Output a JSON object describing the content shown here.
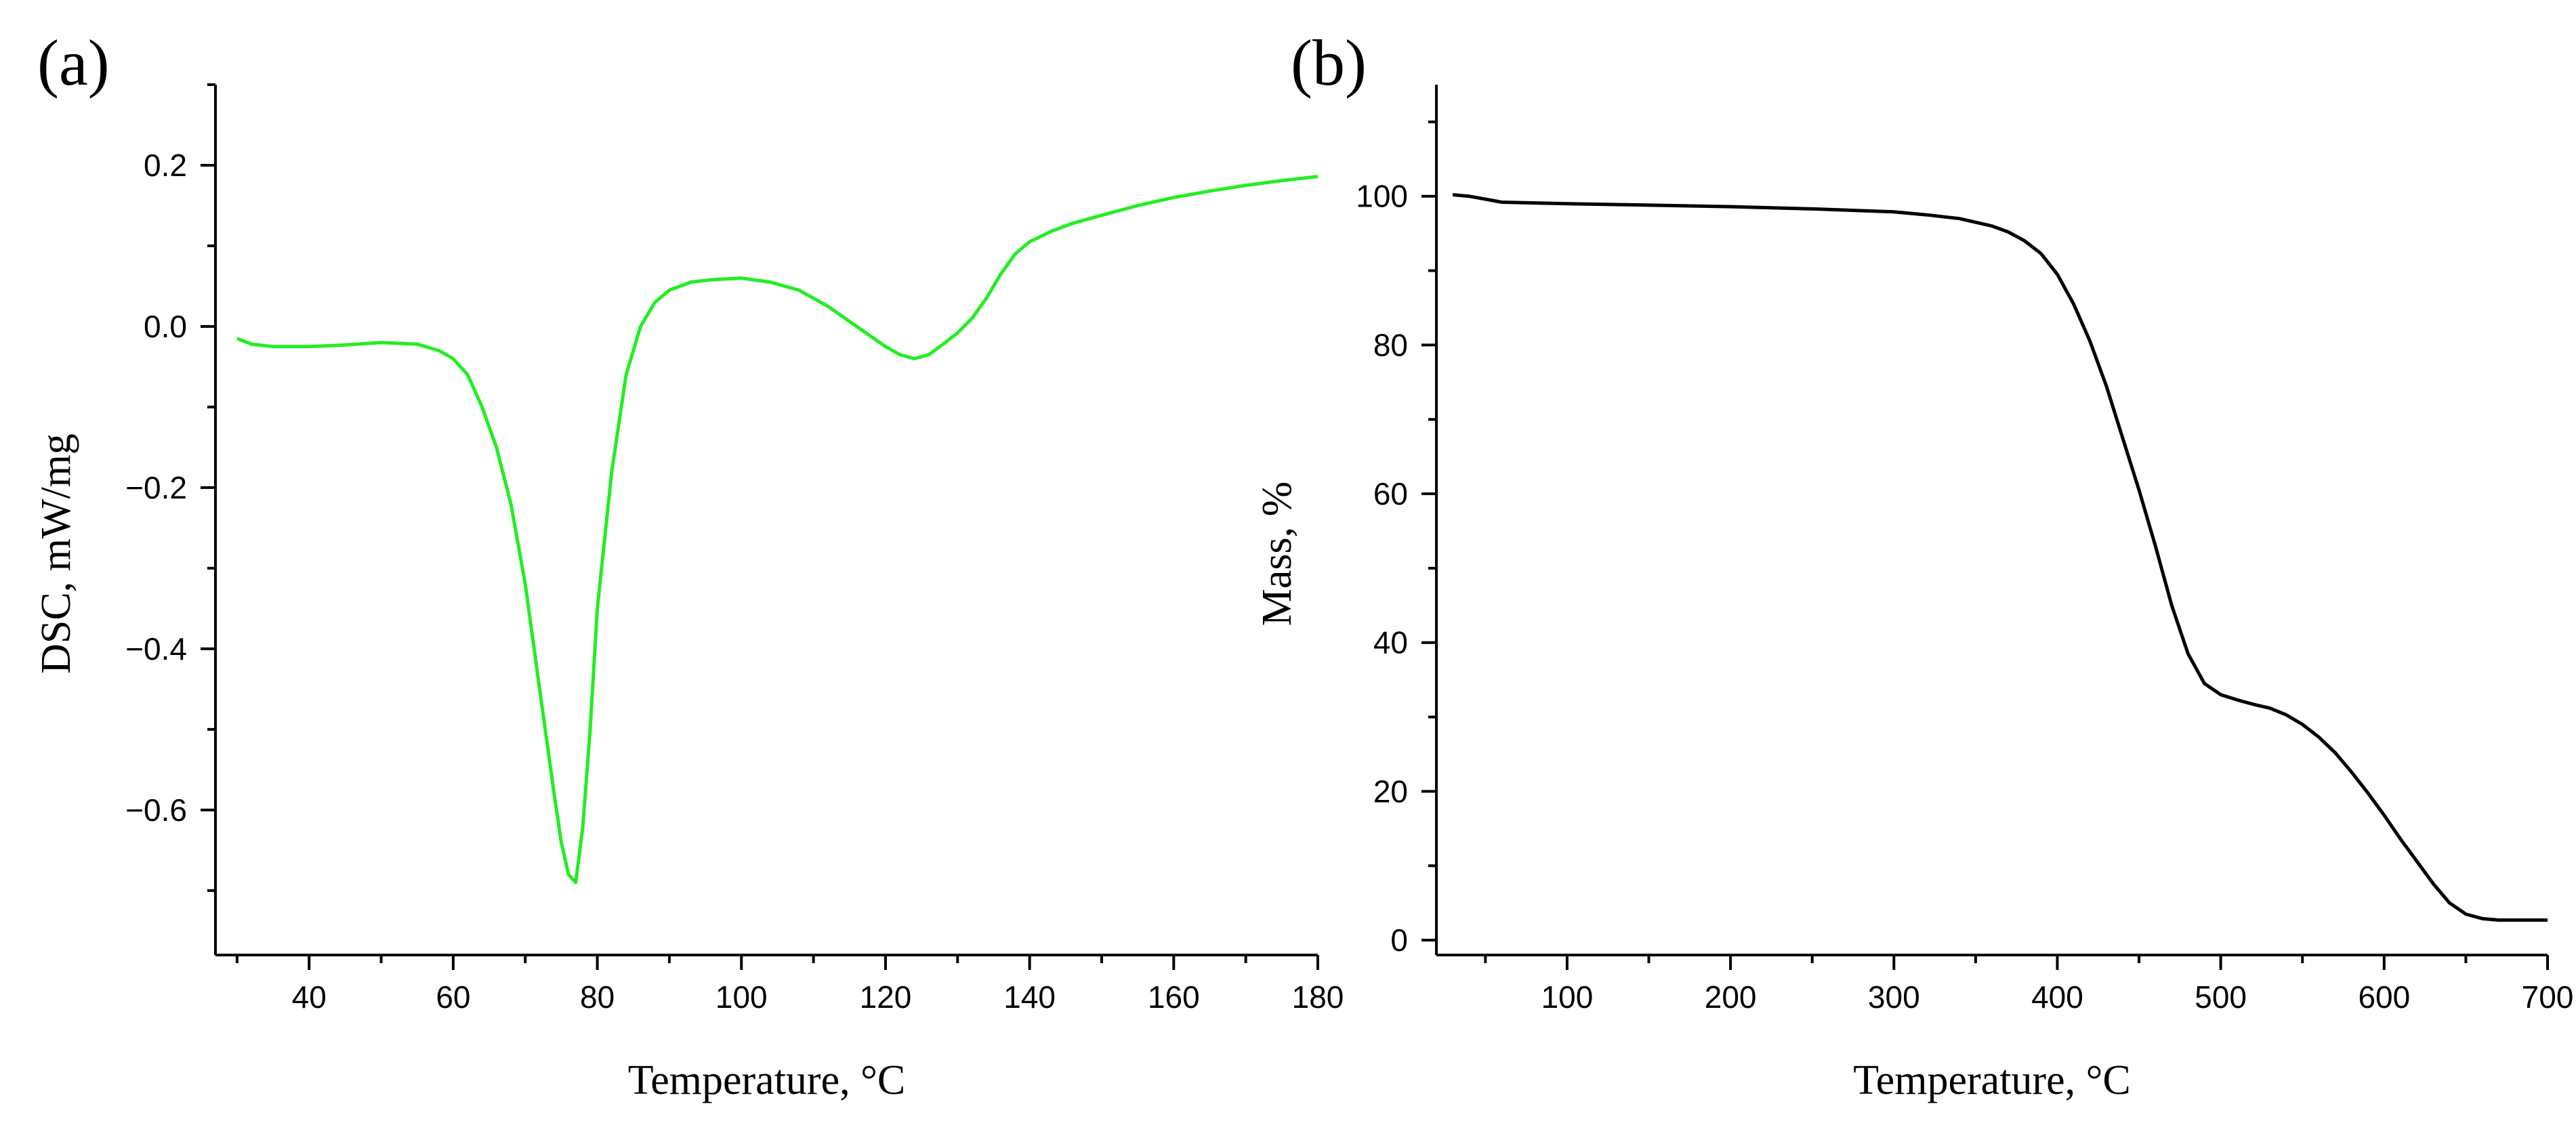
{
  "panels": {
    "a": {
      "label": "(a)"
    },
    "b": {
      "label": "(b)"
    }
  },
  "colors": {
    "dsc_curve": "#22ee22",
    "tga_curve": "#000000",
    "axes": "#000000"
  },
  "chart_data": [
    {
      "type": "line",
      "title": "",
      "xlabel": "Temperature, °C",
      "ylabel": "DSC, mW/mg",
      "xlim": [
        27,
        180
      ],
      "ylim": [
        -0.78,
        0.3
      ],
      "xticks": [
        40,
        60,
        80,
        100,
        120,
        140,
        160,
        180
      ],
      "xtick_labels": [
        "40",
        "60",
        "80",
        "100",
        "120",
        "140",
        "160",
        "180"
      ],
      "yticks": [
        -0.6,
        -0.4,
        -0.2,
        0.0,
        0.2
      ],
      "ytick_labels": [
        "−0.6",
        "−0.4",
        "−0.2",
        "0.0",
        "0.2"
      ],
      "grid": false,
      "series": [
        {
          "x": [
            30,
            32,
            35,
            40,
            45,
            50,
            55,
            58,
            60,
            62,
            64,
            66,
            68,
            70,
            72,
            74,
            75,
            76,
            77,
            78,
            79,
            80,
            82,
            84,
            86,
            88,
            90,
            93,
            96,
            100,
            104,
            108,
            112,
            116,
            120,
            122,
            124,
            126,
            128,
            130,
            132,
            134,
            136,
            138,
            140,
            143,
            146,
            150,
            155,
            160,
            165,
            170,
            175,
            180
          ],
          "y": [
            -0.015,
            -0.022,
            -0.025,
            -0.025,
            -0.023,
            -0.02,
            -0.022,
            -0.03,
            -0.04,
            -0.06,
            -0.1,
            -0.15,
            -0.22,
            -0.32,
            -0.45,
            -0.58,
            -0.64,
            -0.68,
            -0.69,
            -0.62,
            -0.5,
            -0.35,
            -0.18,
            -0.06,
            0.0,
            0.03,
            0.045,
            0.055,
            0.058,
            0.06,
            0.055,
            0.045,
            0.025,
            0.0,
            -0.025,
            -0.035,
            -0.04,
            -0.035,
            -0.022,
            -0.008,
            0.01,
            0.035,
            0.065,
            0.09,
            0.105,
            0.118,
            0.128,
            0.138,
            0.15,
            0.16,
            0.168,
            0.175,
            0.181,
            0.186
          ]
        }
      ]
    },
    {
      "type": "line",
      "title": "",
      "xlabel": "Temperature, °C",
      "ylabel": "Mass, %",
      "xlim": [
        20,
        700
      ],
      "ylim": [
        -2,
        115
      ],
      "xticks": [
        100,
        200,
        300,
        400,
        500,
        600,
        700
      ],
      "xtick_labels": [
        "100",
        "200",
        "300",
        "400",
        "500",
        "600",
        "700"
      ],
      "yticks": [
        0,
        20,
        40,
        60,
        80,
        100
      ],
      "ytick_labels": [
        "0",
        "20",
        "40",
        "60",
        "80",
        "100"
      ],
      "grid": false,
      "series": [
        {
          "x": [
            30,
            40,
            50,
            60,
            80,
            100,
            150,
            200,
            250,
            300,
            320,
            340,
            360,
            370,
            380,
            390,
            400,
            410,
            420,
            430,
            440,
            450,
            460,
            470,
            480,
            490,
            500,
            510,
            520,
            530,
            540,
            550,
            560,
            570,
            580,
            590,
            600,
            610,
            620,
            630,
            640,
            650,
            660,
            670,
            680,
            690,
            700
          ],
          "y": [
            100.2,
            100,
            99.6,
            99.2,
            99.1,
            99.0,
            98.8,
            98.6,
            98.3,
            97.9,
            97.5,
            97.0,
            96.0,
            95.2,
            94.0,
            92.3,
            89.5,
            85.5,
            80.5,
            74.5,
            67.5,
            60.5,
            53.0,
            45.0,
            38.5,
            34.5,
            33.0,
            32.3,
            31.7,
            31.2,
            30.3,
            29.0,
            27.3,
            25.2,
            22.6,
            19.8,
            16.8,
            13.6,
            10.6,
            7.6,
            5.0,
            3.5,
            2.9,
            2.7,
            2.7,
            2.7,
            2.7
          ]
        }
      ]
    }
  ]
}
